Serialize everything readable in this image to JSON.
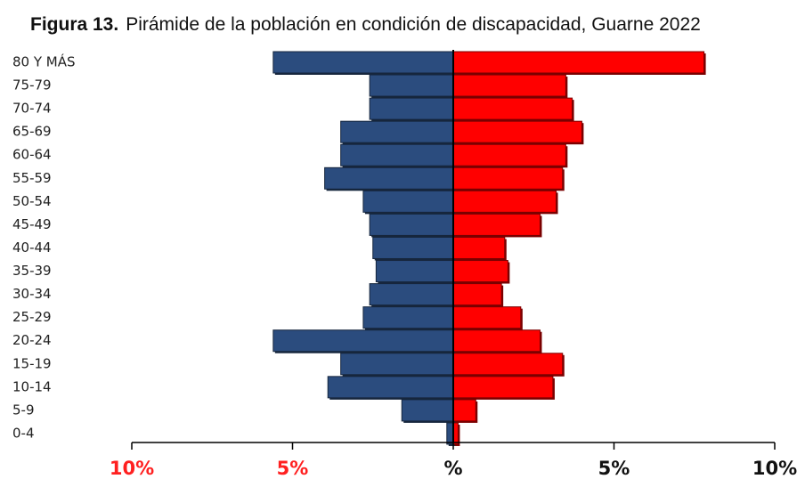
{
  "chart_data": {
    "type": "pyramid",
    "figure_label": "Figura 13.",
    "title": "Pirámide de la población en condición de discapacidad, Guarne 2022",
    "categories": [
      "80 Y MÁS",
      "75-79",
      "70-74",
      "65-69",
      "60-64",
      "55-59",
      "50-54",
      "45-49",
      "40-44",
      "35-39",
      "30-34",
      "25-29",
      "20-24",
      "15-19",
      "10-14",
      "5-9",
      "0-4"
    ],
    "series": [
      {
        "color": "#2b4c7e",
        "values": [
          5.6,
          2.6,
          2.6,
          3.5,
          3.5,
          4.0,
          2.8,
          2.6,
          2.5,
          2.4,
          2.6,
          2.8,
          5.6,
          3.5,
          3.9,
          1.6,
          0.2
        ]
      },
      {
        "color": "#ff0000",
        "values": [
          7.8,
          3.5,
          3.7,
          4.0,
          3.5,
          3.4,
          3.2,
          2.7,
          1.6,
          1.7,
          1.5,
          2.1,
          2.7,
          3.4,
          3.1,
          0.7,
          0.15
        ]
      }
    ],
    "xlim": [
      -10,
      10
    ],
    "xticks": [
      {
        "value": -10,
        "label": "10%",
        "color": "#ff2020"
      },
      {
        "value": -5,
        "label": "5%",
        "color": "#ff2020"
      },
      {
        "value": 0,
        "label": "%",
        "color": "#111111"
      },
      {
        "value": 5,
        "label": "5%",
        "color": "#111111"
      },
      {
        "value": 10,
        "label": "10%",
        "color": "#111111"
      }
    ]
  }
}
